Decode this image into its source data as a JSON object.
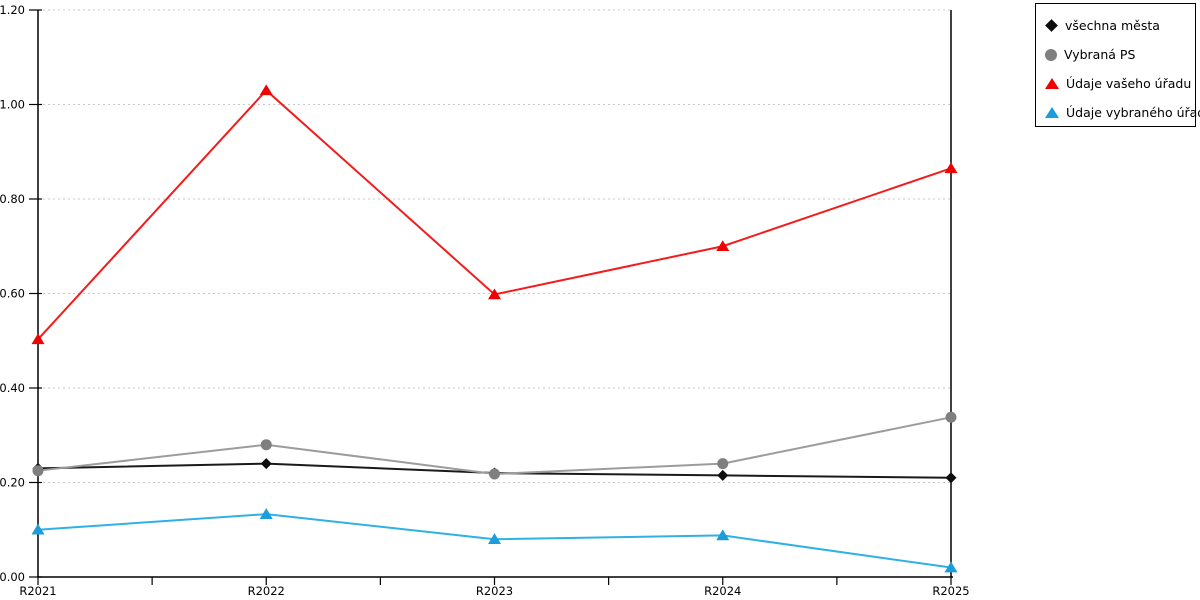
{
  "chart_data": {
    "type": "line",
    "title": "",
    "xlabel": "",
    "ylabel": "",
    "categories": [
      "R2021",
      "R2022",
      "R2023",
      "R2024",
      "R2025"
    ],
    "series": [
      {
        "name": "všechna města",
        "marker": "diamond",
        "line_color": "#1a1a1a",
        "marker_color": "#0d0d0d",
        "values": [
          0.23,
          0.24,
          0.22,
          0.215,
          0.21
        ]
      },
      {
        "name": "Vybraná PS",
        "marker": "circle",
        "line_color": "#9c9c9c",
        "marker_color": "#7f7f7f",
        "values": [
          0.225,
          0.28,
          0.218,
          0.24,
          0.338
        ]
      },
      {
        "name": "Údaje vašeho úřadu",
        "marker": "triangle",
        "line_color": "#f41b1b",
        "marker_color": "#ee0202",
        "values": [
          0.503,
          1.03,
          0.598,
          0.7,
          0.865
        ]
      },
      {
        "name": "Údaje vybraného úřadu",
        "marker": "triangle",
        "line_color": "#2fb0e6",
        "marker_color": "#1b9ddb",
        "values": [
          0.1,
          0.133,
          0.08,
          0.088,
          0.02
        ]
      }
    ],
    "ylim": [
      0,
      1.2
    ],
    "yticks": [
      {
        "value": 0.0,
        "label": "0.00"
      },
      {
        "value": 0.2,
        "label": "0.20"
      },
      {
        "value": 0.4,
        "label": "0.40"
      },
      {
        "value": 0.6,
        "label": "0.60"
      },
      {
        "value": 0.8,
        "label": "0.80"
      },
      {
        "value": 1.0,
        "label": "1.00"
      },
      {
        "value": 1.2,
        "label": "1.20"
      }
    ],
    "grid": "horizontal-dashed",
    "grid_color": "#c8c8c8",
    "axis_color": "#000000",
    "legend_position": "top-right"
  }
}
